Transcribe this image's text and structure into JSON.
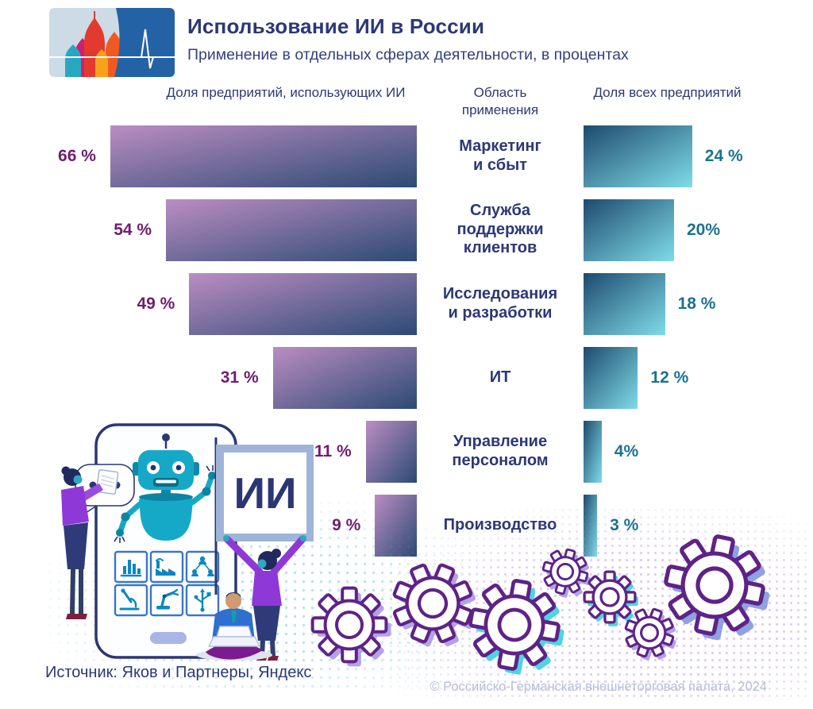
{
  "header": {
    "title": "Использование ИИ в России",
    "subtitle": "Применение в отдельных сферах деятельности, в процентах",
    "logo": {
      "name": "ahk-russia-logo",
      "elements": [
        "st-basil-domes",
        "pulse-line"
      ],
      "accent_blue": "#2363a5",
      "light_bg": "#cddbe7"
    }
  },
  "chart_data": {
    "type": "bar",
    "orientation": "horizontal, two mirrored columns",
    "column_headers": {
      "left": "Доля предприятий, использующих ИИ",
      "middle": "Область\nприменения",
      "right": "Доля всех предприятий"
    },
    "categories": [
      "Маркетинг\nи сбыт",
      "Служба\nподдержки\nклиентов",
      "Исследования\nи разработки",
      "ИТ",
      "Управление\nперсоналом",
      "Производство"
    ],
    "series": [
      {
        "name": "Доля предприятий, использующих ИИ",
        "values": [
          66,
          54,
          49,
          31,
          11,
          9
        ],
        "labels": [
          "66 %",
          "54 %",
          "49 %",
          "31 %",
          "11 %",
          "9 %"
        ],
        "label_color": "#701c6d",
        "gradient": [
          "#bb8dc2",
          "#2c4a74"
        ],
        "align": "right"
      },
      {
        "name": "Доля всех предприятий",
        "values": [
          24,
          20,
          18,
          12,
          4,
          3
        ],
        "labels": [
          "24 %",
          "20%",
          "18 %",
          "12 %",
          "4%",
          "3 %"
        ],
        "label_color": "#1a7291",
        "gradient": [
          "#1e4a6e",
          "#7fdce8"
        ],
        "align": "left"
      }
    ],
    "xlim": [
      0,
      100
    ],
    "grid": false,
    "legend": "none"
  },
  "illustration": {
    "sign_text": "ИИ",
    "speech_bubble": "…",
    "app_icons": [
      "bar-chart-icon",
      "factory-icon",
      "team-network-icon",
      "microscope-icon",
      "robot-arm-icon",
      "usb-icon"
    ],
    "figures": [
      "robot",
      "smartphone",
      "woman-with-document",
      "woman-holding-sign",
      "man-with-laptop",
      "gears"
    ]
  },
  "footer": {
    "source": "Источник: Яков и Партнеры, Яндекс",
    "copyright": "© Российско-Германская внешнеторговая палата, 2024"
  }
}
